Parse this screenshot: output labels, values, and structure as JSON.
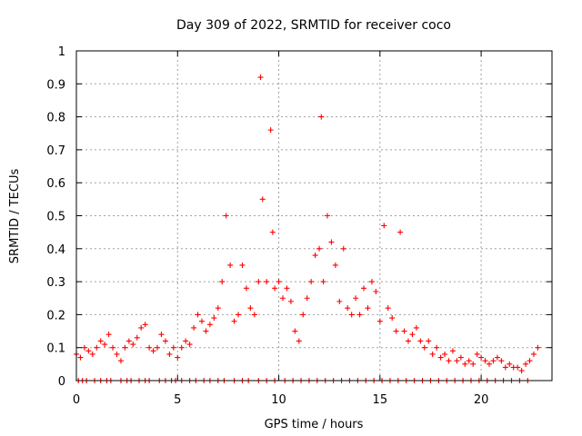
{
  "chart_data": {
    "type": "scatter",
    "title": "Day 309 of 2022, SRMTID for receiver coco",
    "xlabel": "GPS time / hours",
    "ylabel": "SRMTID / TECUs",
    "xlim": [
      0,
      23.5
    ],
    "ylim": [
      0,
      1
    ],
    "xticks": [
      0,
      5,
      10,
      15,
      20
    ],
    "yticks": [
      0,
      0.1,
      0.2,
      0.3,
      0.4,
      0.5,
      0.6,
      0.7,
      0.8,
      0.9,
      1
    ],
    "x_tick_labels": [
      "0",
      "5",
      "10",
      "15",
      "20"
    ],
    "y_tick_labels": [
      "0",
      "0.1",
      "0.2",
      "0.3",
      "0.4",
      "0.5",
      "0.6",
      "0.7",
      "0.8",
      "0.9",
      "1"
    ],
    "grid": true,
    "marker": "+",
    "series_color": "#ff0000",
    "series": [
      {
        "name": "SRMTID",
        "x": [
          0.0,
          0.2,
          0.4,
          0.6,
          0.8,
          1.0,
          1.2,
          1.4,
          1.6,
          1.8,
          2.0,
          2.2,
          2.4,
          2.6,
          2.8,
          3.0,
          3.2,
          3.4,
          3.6,
          3.8,
          4.0,
          4.2,
          4.4,
          4.6,
          4.8,
          5.0,
          5.2,
          5.4,
          5.6,
          5.8,
          6.0,
          6.2,
          6.4,
          6.6,
          6.8,
          7.0,
          7.2,
          7.4,
          7.6,
          7.8,
          8.0,
          8.2,
          8.4,
          8.6,
          8.8,
          9.0,
          9.1,
          9.2,
          9.4,
          9.6,
          9.7,
          9.8,
          10.0,
          10.2,
          10.4,
          10.6,
          10.8,
          11.0,
          11.2,
          11.4,
          11.6,
          11.8,
          12.0,
          12.1,
          12.2,
          12.4,
          12.6,
          12.8,
          13.0,
          13.2,
          13.4,
          13.6,
          13.8,
          14.0,
          14.2,
          14.4,
          14.6,
          14.8,
          15.0,
          15.2,
          15.4,
          15.6,
          15.8,
          16.0,
          16.2,
          16.4,
          16.6,
          16.8,
          17.0,
          17.2,
          17.4,
          17.6,
          17.8,
          18.0,
          18.2,
          18.4,
          18.6,
          18.8,
          19.0,
          19.2,
          19.4,
          19.6,
          19.8,
          20.0,
          20.2,
          20.4,
          20.6,
          20.8,
          21.0,
          21.2,
          21.4,
          21.6,
          21.8,
          22.0,
          22.2,
          22.4,
          22.6,
          22.8
        ],
        "y": [
          0.08,
          0.07,
          0.1,
          0.09,
          0.08,
          0.1,
          0.12,
          0.11,
          0.14,
          0.1,
          0.08,
          0.06,
          0.1,
          0.12,
          0.11,
          0.13,
          0.16,
          0.17,
          0.1,
          0.09,
          0.1,
          0.14,
          0.12,
          0.08,
          0.1,
          0.07,
          0.1,
          0.12,
          0.11,
          0.16,
          0.2,
          0.18,
          0.15,
          0.17,
          0.19,
          0.22,
          0.3,
          0.5,
          0.35,
          0.18,
          0.2,
          0.35,
          0.28,
          0.22,
          0.2,
          0.3,
          0.92,
          0.55,
          0.3,
          0.76,
          0.45,
          0.28,
          0.3,
          0.25,
          0.28,
          0.24,
          0.15,
          0.12,
          0.2,
          0.25,
          0.3,
          0.38,
          0.4,
          0.8,
          0.3,
          0.5,
          0.42,
          0.35,
          0.24,
          0.4,
          0.22,
          0.2,
          0.25,
          0.2,
          0.28,
          0.22,
          0.3,
          0.27,
          0.18,
          0.47,
          0.22,
          0.19,
          0.15,
          0.45,
          0.15,
          0.12,
          0.14,
          0.16,
          0.12,
          0.1,
          0.12,
          0.08,
          0.1,
          0.07,
          0.08,
          0.06,
          0.09,
          0.06,
          0.07,
          0.05,
          0.06,
          0.05,
          0.08,
          0.07,
          0.06,
          0.05,
          0.06,
          0.07,
          0.06,
          0.04,
          0.05,
          0.04,
          0.04,
          0.03,
          0.05,
          0.06,
          0.08,
          0.1
        ]
      }
    ],
    "baseline_points_x": [
      0.1,
      0.3,
      0.5,
      0.9,
      1.2,
      1.5,
      1.7,
      2.2,
      2.5,
      2.7,
      3.1,
      3.4,
      3.6,
      4.1,
      4.4,
      4.7,
      4.9,
      5.2,
      5.6,
      5.9,
      6.3,
      6.6,
      7.0,
      7.3,
      7.8,
      8.2,
      8.5,
      9.0,
      9.4,
      9.8,
      10.3,
      10.7,
      11.1,
      11.5,
      11.9,
      12.3,
      12.7,
      13.1,
      13.5,
      13.9,
      14.3,
      14.7,
      15.1,
      15.5,
      15.9,
      16.3,
      16.7,
      17.1,
      17.5,
      17.9,
      18.3,
      18.7,
      19.1,
      19.5,
      19.9,
      20.3,
      20.7,
      21.1,
      21.5,
      21.9,
      22.3
    ],
    "baseline_points_y": [
      0,
      0,
      0,
      0,
      0,
      0,
      0,
      0,
      0,
      0,
      0,
      0,
      0,
      0,
      0,
      0,
      0,
      0,
      0,
      0,
      0,
      0,
      0,
      0,
      0,
      0,
      0,
      0,
      0,
      0,
      0,
      0,
      0,
      0,
      0,
      0,
      0,
      0,
      0,
      0,
      0,
      0,
      0,
      0,
      0,
      0,
      0,
      0,
      0,
      0,
      0,
      0,
      0,
      0,
      0,
      0,
      0,
      0,
      0,
      0,
      0
    ]
  }
}
